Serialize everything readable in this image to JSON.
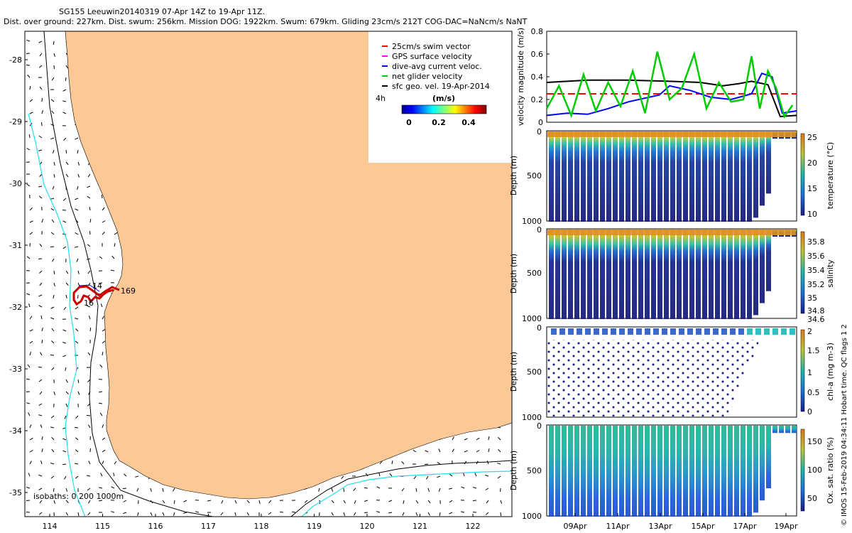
{
  "header": {
    "line1": "SG155 Leeuwin20140319 07-Apr 14Z to 19-Apr 11Z.",
    "line2": "Dist. over ground: 227km. Dist. swum: 256km. Mission DOG: 1922km. Swum: 679km. Gliding 23cm/s 212T COG-DAC=NaNcm/s NaNT"
  },
  "map": {
    "legend": [
      {
        "label": "25cm/s swim vector",
        "color": "#ff0000"
      },
      {
        "label": "GPS surface velocity",
        "color": "#ff00ff"
      },
      {
        "label": "dive-avg current veloc.",
        "color": "#0000ff"
      },
      {
        "label": "net glider velocity",
        "color": "#00cc00"
      },
      {
        "label": "sfc geo. vel. 19-Apr-2014",
        "color": "#000000"
      }
    ],
    "colorbar_title": "(m/s)",
    "colorbar_ticks": [
      "0",
      "0.2",
      "0.4"
    ],
    "interval_label": "4h",
    "isobaths_label": "isobaths: 0   200  1000m",
    "track_labels": [
      "14",
      "169",
      "16"
    ],
    "lat_ticks": [
      "-28",
      "-29",
      "-30",
      "-31",
      "-32",
      "-33",
      "-34",
      "-35"
    ],
    "lon_ticks": [
      "114",
      "115",
      "116",
      "117",
      "118",
      "119",
      "120",
      "121",
      "122"
    ]
  },
  "footer_credit": "© IMOS 15-Feb-2019 04:34:11 Hobart time. QC flags 1  2",
  "chart_data": [
    {
      "type": "line",
      "title": "",
      "ylabel": "velocity magnitude (m/s)",
      "ylim": [
        0,
        0.8
      ],
      "yticks": [
        "0",
        "0.2",
        "0.4",
        "0.6",
        "0.8"
      ],
      "xlim": [
        0,
        12.2
      ],
      "series": [
        {
          "name": "swim speed",
          "color": "#ff0000",
          "style": "dashed",
          "x": [
            0,
            12.2
          ],
          "values": [
            0.25,
            0.25
          ]
        },
        {
          "name": "surface geostrophic",
          "color": "#000000",
          "x": [
            0,
            2,
            4,
            6,
            7.5,
            8.6,
            9.4,
            10,
            10.8,
            11.4,
            12.2
          ],
          "values": [
            0.35,
            0.37,
            0.37,
            0.36,
            0.35,
            0.32,
            0.34,
            0.36,
            0.33,
            0.05,
            0.06
          ]
        },
        {
          "name": "dive-avg current",
          "color": "#0000ff",
          "x": [
            0,
            1,
            2,
            3,
            4,
            5,
            5.5,
            6,
            7,
            8,
            9,
            10,
            10.5,
            11,
            11.5,
            12.2
          ],
          "values": [
            0.06,
            0.08,
            0.07,
            0.12,
            0.18,
            0.22,
            0.24,
            0.32,
            0.28,
            0.22,
            0.2,
            0.25,
            0.43,
            0.4,
            0.08,
            0.1
          ]
        },
        {
          "name": "net glider velocity",
          "color": "#00cc00",
          "x": [
            0,
            0.6,
            1.2,
            1.8,
            2.4,
            3,
            3.6,
            4.2,
            4.8,
            5.4,
            6,
            6.6,
            7.2,
            7.8,
            8.4,
            9,
            9.6,
            10,
            10.4,
            10.8,
            11.2,
            11.6,
            12
          ],
          "values": [
            0.12,
            0.32,
            0.06,
            0.42,
            0.1,
            0.35,
            0.14,
            0.45,
            0.08,
            0.62,
            0.2,
            0.3,
            0.6,
            0.12,
            0.35,
            0.18,
            0.2,
            0.58,
            0.12,
            0.45,
            0.3,
            0.05,
            0.15
          ]
        }
      ]
    },
    {
      "type": "heatmap",
      "ylabel": "Depth (m)",
      "colorbar_label": "temperature (°C)",
      "ylim": [
        1000,
        0
      ],
      "yticks": [
        "0",
        "500",
        "1000"
      ],
      "colorbar_range": [
        10,
        25
      ],
      "colorbar_ticks": [
        "10",
        "15",
        "20",
        "25"
      ]
    },
    {
      "type": "heatmap",
      "ylabel": "Depth (m)",
      "colorbar_label": "salinity",
      "ylim": [
        1000,
        0
      ],
      "yticks": [
        "0",
        "500",
        "1000"
      ],
      "colorbar_range": [
        34.5,
        35.9
      ],
      "colorbar_ticks": [
        "34.6",
        "34.8",
        "35",
        "35.2",
        "35.4",
        "35.6",
        "35.8"
      ]
    },
    {
      "type": "scatter",
      "ylabel": "Depth (m)",
      "colorbar_label": "chl-a (mg m-3)",
      "ylim": [
        1000,
        0
      ],
      "yticks": [
        "0",
        "500",
        "1000"
      ],
      "colorbar_range": [
        0,
        2
      ],
      "colorbar_ticks": [
        "0",
        "0.5",
        "1",
        "1.5",
        "2"
      ]
    },
    {
      "type": "heatmap",
      "ylabel": "Depth (m)",
      "colorbar_label": "Ox. sat. ratio (%)",
      "ylim": [
        1000,
        0
      ],
      "yticks": [
        "0",
        "500",
        "1000"
      ],
      "colorbar_range": [
        20,
        180
      ],
      "colorbar_ticks": [
        "50",
        "100",
        "150"
      ],
      "x_ticks": [
        "09Apr",
        "11Apr",
        "13Apr",
        "15Apr",
        "17Apr",
        "19Apr"
      ]
    }
  ]
}
